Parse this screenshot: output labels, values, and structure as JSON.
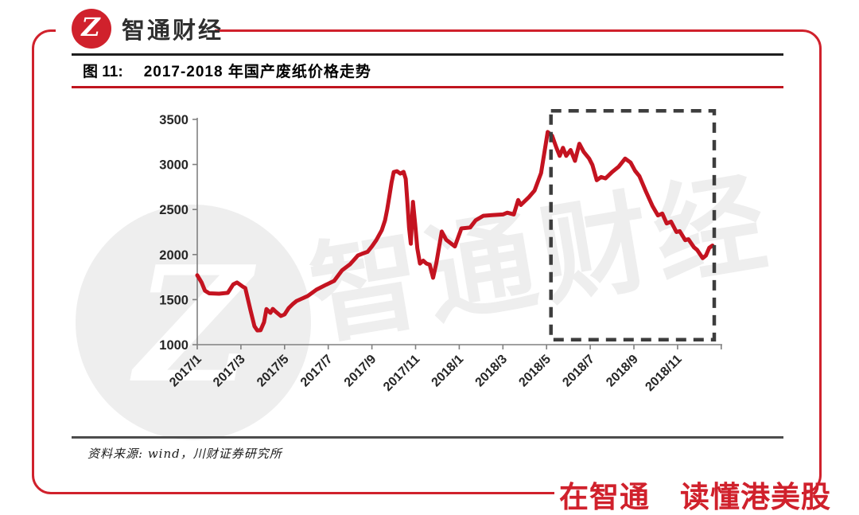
{
  "brand": {
    "logo_text": "智通财经",
    "logo_glyph": "Z",
    "brand_red": "#d0212c",
    "slogan": "在智通　读懂港美股"
  },
  "figure": {
    "label": "图 11:",
    "title": "2017-2018 年国产废纸价格走势"
  },
  "footer": {
    "source": "资料来源: wind，川财证券研究所"
  },
  "watermark": {
    "circle_glyph": "Z",
    "text": "智通财经",
    "color": "#eeeeee"
  },
  "chart_data": {
    "type": "line",
    "title": "2017-2018 年国产废纸价格走势",
    "x_unit": "months_since_2017_01_fractional",
    "x_tick_labels": [
      "2017/1",
      "2017/3",
      "2017/5",
      "2017/7",
      "2017/9",
      "2017/11",
      "2018/1",
      "2018/3",
      "2018/5",
      "2018/7",
      "2018/9",
      "2018/11"
    ],
    "x_tick_step_months": 2,
    "extra_unlabeled_tick_month": 24,
    "y_ticks": [
      1000,
      1500,
      2000,
      2500,
      3000,
      3500
    ],
    "ylim": [
      1000,
      3500
    ],
    "xlim_months": [
      0,
      24
    ],
    "grid": false,
    "legend": false,
    "line_color": "#c41320",
    "axis_color": "#808080",
    "tick_label_color": "#262626",
    "series": [
      {
        "name": "国产废纸价格",
        "points": [
          [
            0,
            1770
          ],
          [
            0.2,
            1690
          ],
          [
            0.35,
            1600
          ],
          [
            0.55,
            1570
          ],
          [
            1.0,
            1565
          ],
          [
            1.4,
            1575
          ],
          [
            1.65,
            1670
          ],
          [
            1.82,
            1690
          ],
          [
            2.08,
            1645
          ],
          [
            2.2,
            1628
          ],
          [
            2.44,
            1380
          ],
          [
            2.62,
            1205
          ],
          [
            2.75,
            1158
          ],
          [
            2.9,
            1160
          ],
          [
            3.06,
            1250
          ],
          [
            3.17,
            1395
          ],
          [
            3.35,
            1353
          ],
          [
            3.46,
            1397
          ],
          [
            3.6,
            1365
          ],
          [
            3.83,
            1318
          ],
          [
            4.0,
            1336
          ],
          [
            4.19,
            1406
          ],
          [
            4.37,
            1450
          ],
          [
            4.55,
            1485
          ],
          [
            5.06,
            1540
          ],
          [
            5.46,
            1610
          ],
          [
            5.9,
            1665
          ],
          [
            6.27,
            1708
          ],
          [
            6.63,
            1825
          ],
          [
            7.0,
            1892
          ],
          [
            7.36,
            1990
          ],
          [
            7.54,
            2008
          ],
          [
            7.8,
            2030
          ],
          [
            8.0,
            2090
          ],
          [
            8.2,
            2160
          ],
          [
            8.45,
            2270
          ],
          [
            8.6,
            2380
          ],
          [
            8.7,
            2500
          ],
          [
            8.8,
            2650
          ],
          [
            8.9,
            2800
          ],
          [
            9.0,
            2915
          ],
          [
            9.15,
            2925
          ],
          [
            9.3,
            2898
          ],
          [
            9.45,
            2918
          ],
          [
            9.55,
            2840
          ],
          [
            9.63,
            2570
          ],
          [
            9.7,
            2300
          ],
          [
            9.78,
            2120
          ],
          [
            9.88,
            2585
          ],
          [
            9.98,
            2335
          ],
          [
            10.08,
            2068
          ],
          [
            10.2,
            1900
          ],
          [
            10.35,
            1932
          ],
          [
            10.5,
            1900
          ],
          [
            10.65,
            1888
          ],
          [
            10.8,
            1742
          ],
          [
            10.95,
            1905
          ],
          [
            11.2,
            2255
          ],
          [
            11.4,
            2165
          ],
          [
            11.8,
            2090
          ],
          [
            12.1,
            2290
          ],
          [
            12.5,
            2300
          ],
          [
            12.75,
            2380
          ],
          [
            13.1,
            2430
          ],
          [
            13.5,
            2438
          ],
          [
            14.0,
            2445
          ],
          [
            14.2,
            2465
          ],
          [
            14.5,
            2445
          ],
          [
            14.7,
            2605
          ],
          [
            14.82,
            2550
          ],
          [
            15.2,
            2640
          ],
          [
            15.45,
            2710
          ],
          [
            15.75,
            2905
          ],
          [
            16.05,
            3360
          ],
          [
            16.25,
            3320
          ],
          [
            16.45,
            3185
          ],
          [
            16.6,
            3095
          ],
          [
            16.75,
            3185
          ],
          [
            16.9,
            3095
          ],
          [
            17.1,
            3160
          ],
          [
            17.3,
            3040
          ],
          [
            17.5,
            3230
          ],
          [
            17.7,
            3140
          ],
          [
            17.95,
            3065
          ],
          [
            18.1,
            2995
          ],
          [
            18.3,
            2825
          ],
          [
            18.5,
            2860
          ],
          [
            18.7,
            2845
          ],
          [
            19.0,
            2915
          ],
          [
            19.3,
            2975
          ],
          [
            19.6,
            3065
          ],
          [
            19.85,
            3020
          ],
          [
            20.05,
            2930
          ],
          [
            20.25,
            2870
          ],
          [
            20.55,
            2700
          ],
          [
            20.85,
            2540
          ],
          [
            21.1,
            2435
          ],
          [
            21.3,
            2455
          ],
          [
            21.5,
            2345
          ],
          [
            21.7,
            2365
          ],
          [
            21.95,
            2250
          ],
          [
            22.1,
            2260
          ],
          [
            22.35,
            2160
          ],
          [
            22.5,
            2170
          ],
          [
            22.75,
            2080
          ],
          [
            22.9,
            2050
          ],
          [
            23.15,
            1960
          ],
          [
            23.3,
            1990
          ],
          [
            23.45,
            2075
          ],
          [
            23.6,
            2100
          ]
        ]
      }
    ],
    "highlight_box": {
      "style": "dashed",
      "color": "#3d3d3d",
      "x_months": [
        16.2,
        23.68
      ],
      "y_values": [
        1055,
        3595
      ]
    }
  }
}
